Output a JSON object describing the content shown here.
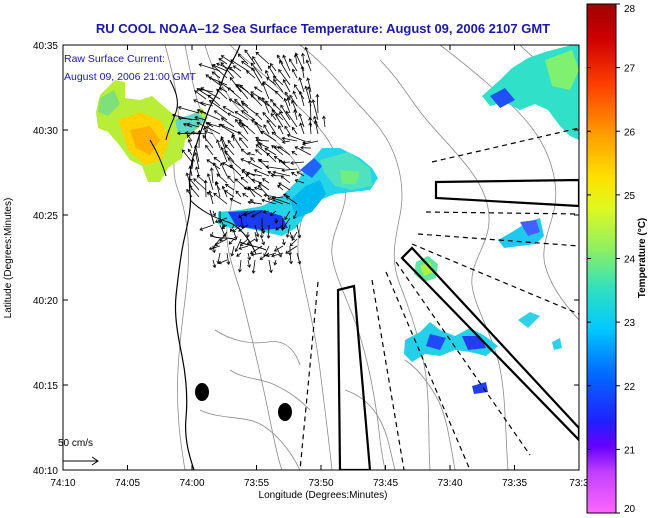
{
  "title": "RU COOL  NOAA–12  Sea Surface Temperature:  August 09, 2006 2107 GMT",
  "inset": {
    "line1": "Raw Surface Current:",
    "line2": "August 09, 2006 21:00 GMT"
  },
  "axes": {
    "xlabel": "Longitude (Degrees:Minutes)",
    "ylabel": "Latitude (Degrees:Minutes)",
    "xticks": [
      "74:10",
      "74:05",
      "74:00",
      "73:55",
      "73:50",
      "73:45",
      "73:40",
      "73:35",
      "73:3"
    ],
    "yticks": [
      "40:35",
      "40:30",
      "40:25",
      "40:20",
      "40:15",
      "40:10"
    ]
  },
  "colorbar": {
    "label": "Temperature (°C)",
    "ticks": [
      "28",
      "27",
      "26",
      "25",
      "24",
      "23",
      "22",
      "21",
      "20"
    ],
    "min": 20,
    "max": 28,
    "colors": [
      "#ff66ff",
      "#a000ff",
      "#2020ff",
      "#00c8ff",
      "#33e0c0",
      "#a0ff40",
      "#ffff00",
      "#ffa000",
      "#ff3000",
      "#b00000"
    ]
  },
  "scale_vector": {
    "label": "50 cm/s"
  },
  "colors": {
    "title": "#1a1aa8",
    "coast": "#000000",
    "bathymetry": "#888888"
  }
}
